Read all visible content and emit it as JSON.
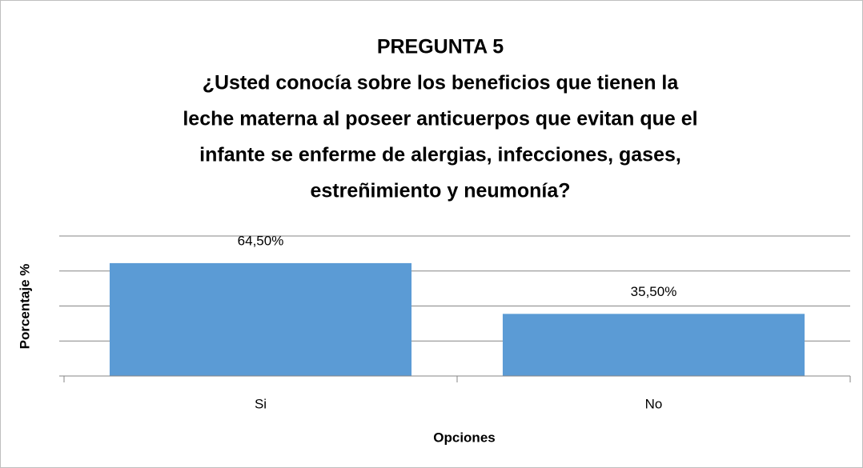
{
  "chart_data": {
    "type": "bar",
    "title": "PREGUNTA 5",
    "subtitle": [
      "¿Usted conocía sobre los beneficios que tienen la",
      "leche materna al poseer anticuerpos que evitan que el",
      "infante se enferme de alergias, infecciones, gases,",
      "estreñimiento y neumonía?"
    ],
    "x_label": "Opciones",
    "y_label": "Porcentaje %",
    "categories": [
      "Si",
      "No"
    ],
    "values": [
      64.5,
      35.5
    ],
    "value_labels": [
      "64,50%",
      "35,50%"
    ],
    "color": "#5b9bd5",
    "ylim": [
      0,
      80
    ],
    "yticks": [
      0,
      20,
      40,
      60,
      80
    ],
    "grid": true
  }
}
